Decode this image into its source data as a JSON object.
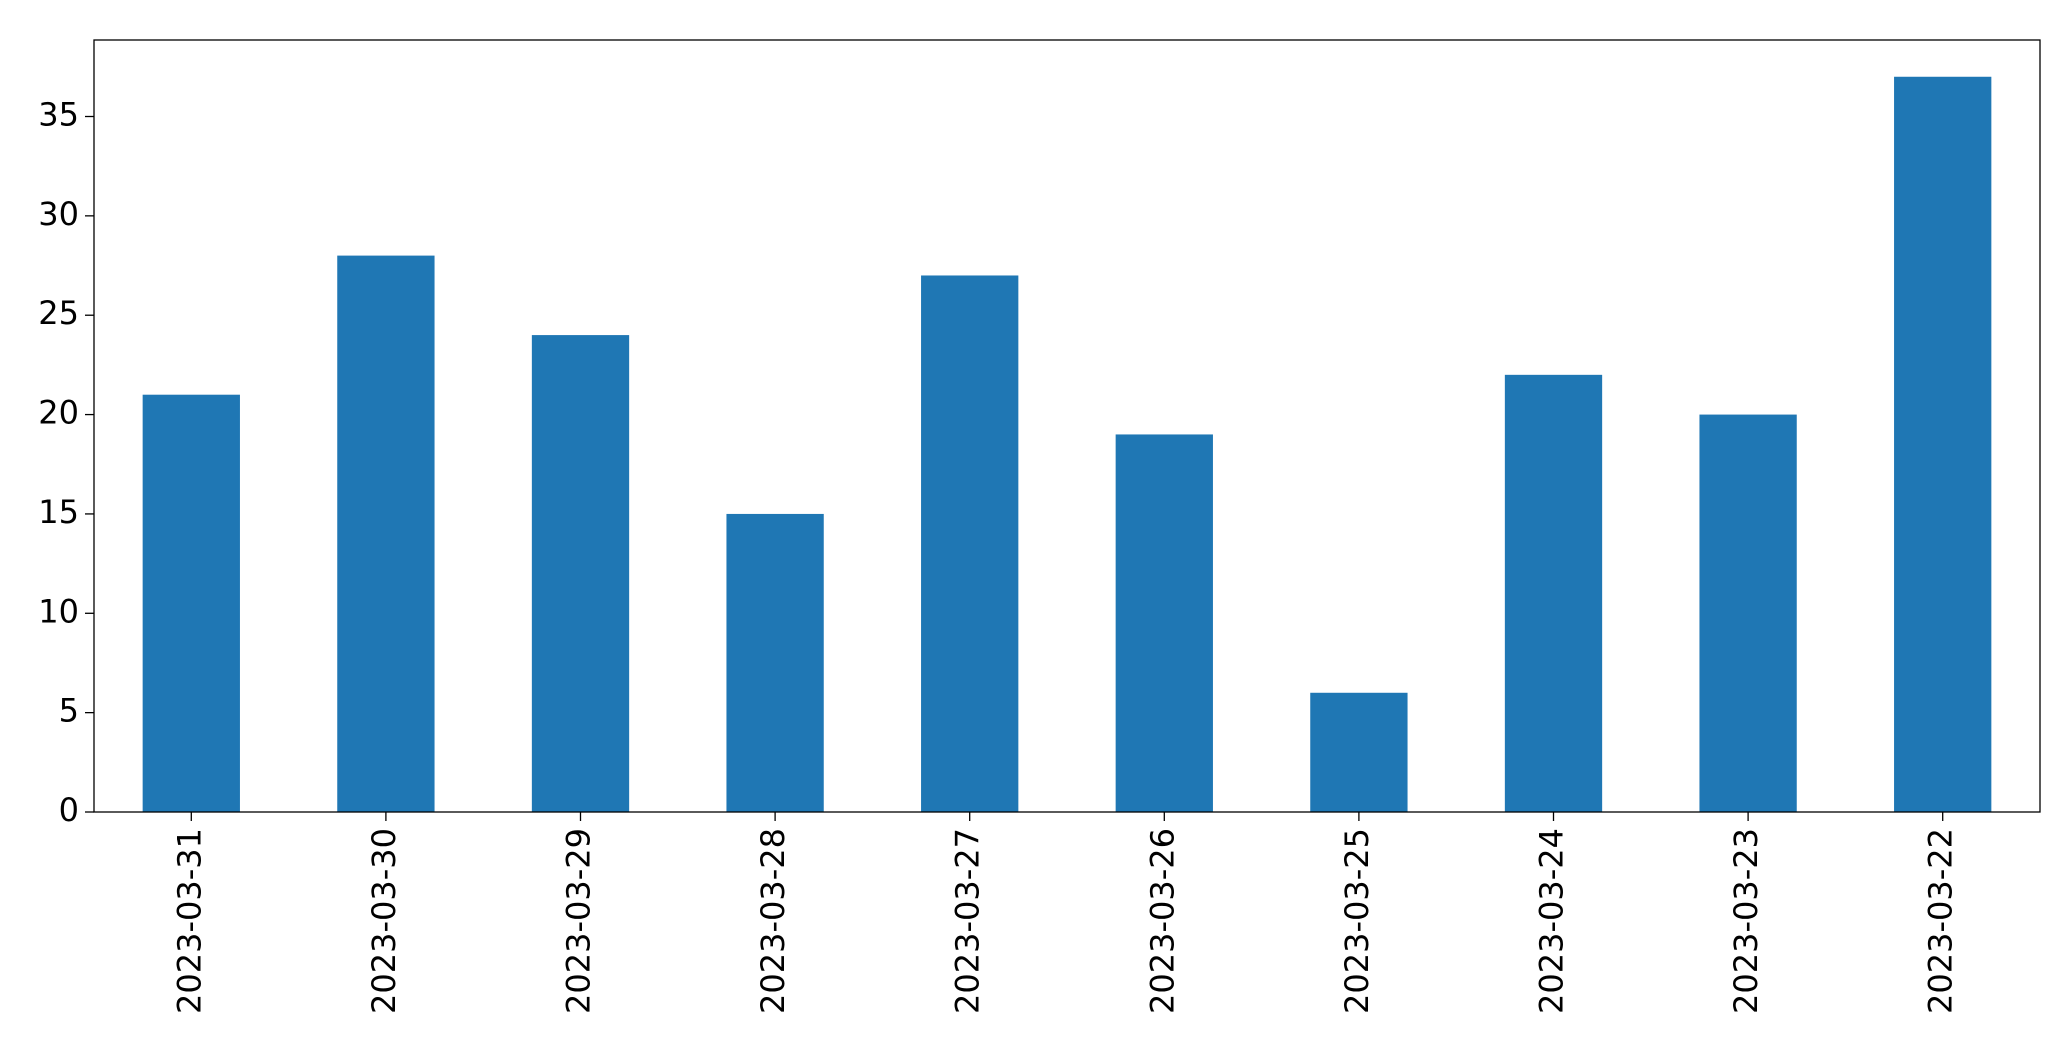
{
  "chart_data": {
    "type": "bar",
    "categories": [
      "2023-03-31",
      "2023-03-30",
      "2023-03-29",
      "2023-03-28",
      "2023-03-27",
      "2023-03-26",
      "2023-03-25",
      "2023-03-24",
      "2023-03-23",
      "2023-03-22"
    ],
    "values": [
      21,
      28,
      24,
      15,
      27,
      19,
      6,
      22,
      20,
      37
    ],
    "color": "#1f77b4",
    "ylim": [
      0,
      38.85
    ],
    "yticks": [
      0,
      5,
      10,
      15,
      20,
      25,
      30,
      35
    ],
    "grid": false
  }
}
